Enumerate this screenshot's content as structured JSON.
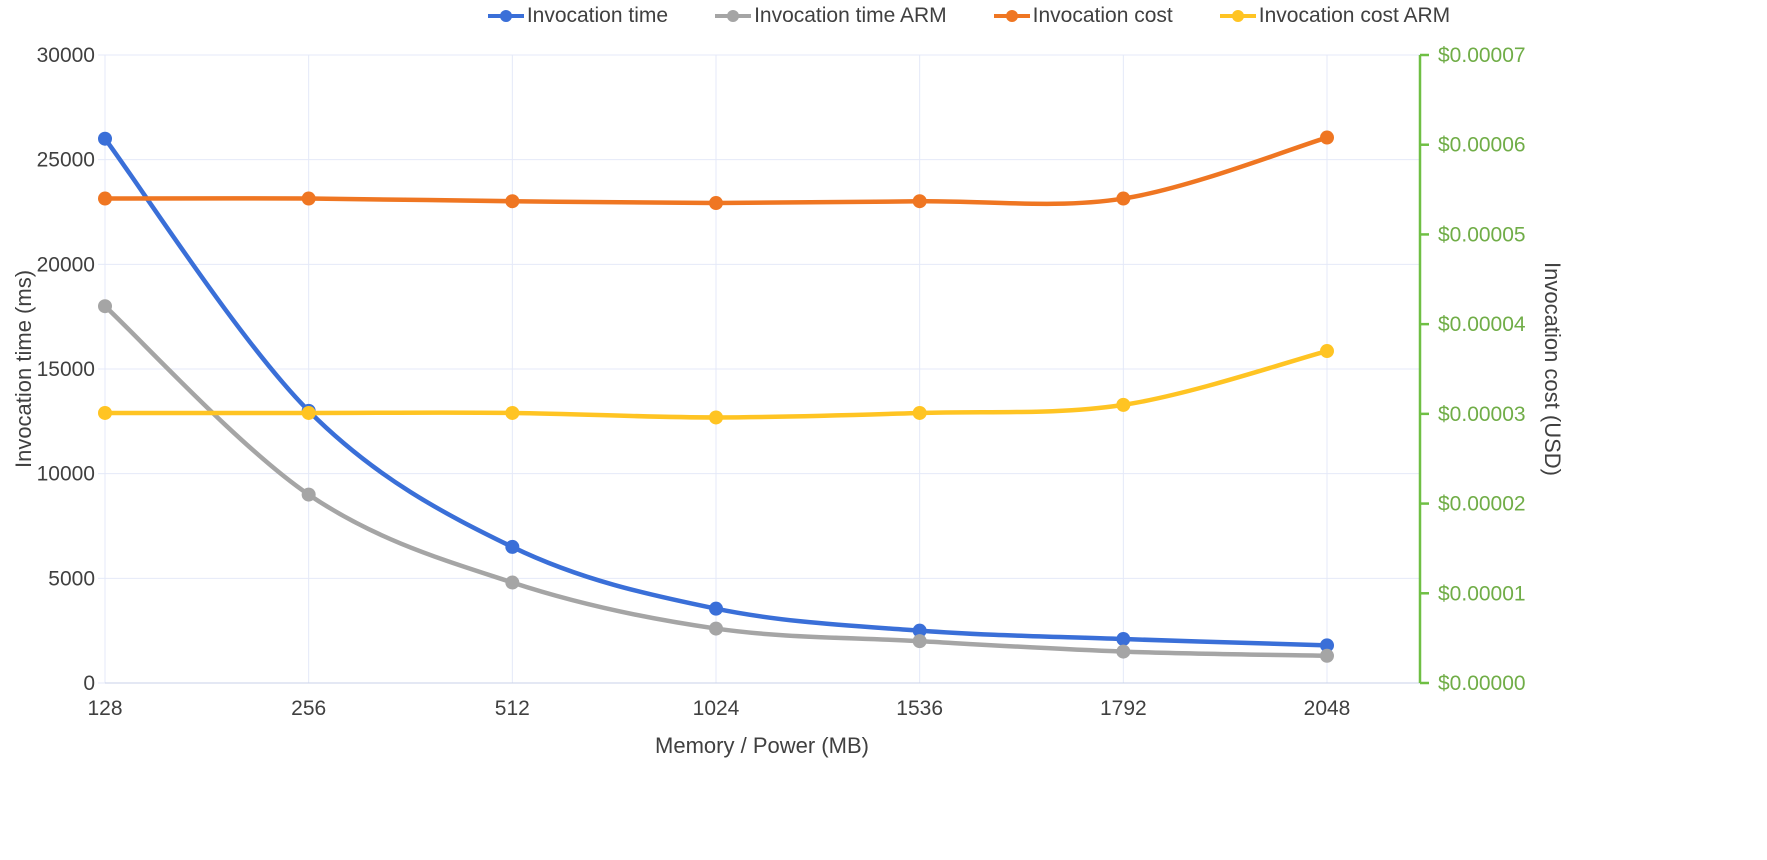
{
  "chart_data": {
    "type": "line",
    "title": "",
    "categories": [
      "128",
      "256",
      "512",
      "1024",
      "1536",
      "1792",
      "2048"
    ],
    "x_axis": {
      "title": "Memory / Power (MB)",
      "text_color": "#404040"
    },
    "left_axis": {
      "title": "Invocation time (ms)",
      "min": 0,
      "max": 30000,
      "step": 5000,
      "tick_labels": [
        "0",
        "5000",
        "10000",
        "15000",
        "20000",
        "25000",
        "30000"
      ],
      "text_color": "#404040"
    },
    "right_axis": {
      "title": "Invocation cost (USD)",
      "min": 0,
      "max": 7e-05,
      "step": 1e-05,
      "tick_labels": [
        "$0.00000",
        "$0.00001",
        "$0.00002",
        "$0.00003",
        "$0.00004",
        "$0.00005",
        "$0.00006",
        "$0.00007"
      ],
      "text_color": "#70AD47",
      "line_color": "#6FBF44"
    },
    "grid": true,
    "gridline_color": "#E4E9F8",
    "x_axis_line_color": "#C9D2E8",
    "legend_position": "top",
    "series": [
      {
        "name": "Invocation time",
        "axis": "left",
        "color": "#3A6FD8",
        "values": [
          26000,
          13000,
          6500,
          3550,
          2500,
          2100,
          1800
        ]
      },
      {
        "name": "Invocation time ARM",
        "axis": "left",
        "color": "#A5A5A5",
        "values": [
          18000,
          9000,
          4800,
          2600,
          2000,
          1500,
          1300
        ]
      },
      {
        "name": "Invocation cost",
        "axis": "right",
        "color": "#EF7622",
        "values": [
          5.4e-05,
          5.4e-05,
          5.37e-05,
          5.35e-05,
          5.37e-05,
          5.4e-05,
          6.08e-05
        ]
      },
      {
        "name": "Invocation cost ARM",
        "axis": "right",
        "color": "#FFC423",
        "values": [
          3.01e-05,
          3.01e-05,
          3.01e-05,
          2.96e-05,
          3.01e-05,
          3.1e-05,
          3.7e-05
        ]
      }
    ]
  }
}
